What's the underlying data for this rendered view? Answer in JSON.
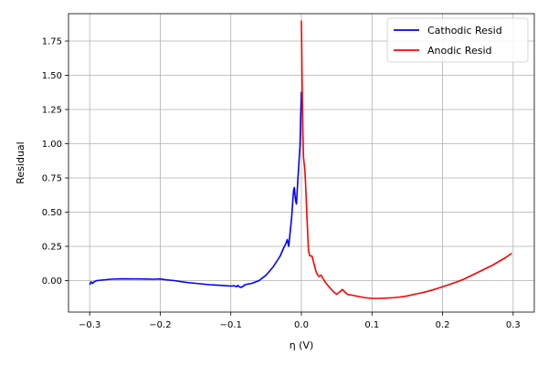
{
  "chart_data": {
    "type": "line",
    "title": "",
    "xlabel": "η (V)",
    "ylabel": "Residual",
    "xlim": [
      -0.33,
      0.33
    ],
    "ylim": [
      -0.23,
      1.95
    ],
    "x_ticks": [
      -0.3,
      -0.2,
      -0.1,
      0.0,
      0.1,
      0.2,
      0.3
    ],
    "x_tick_labels": [
      "−0.3",
      "−0.2",
      "−0.1",
      "0.0",
      "0.1",
      "0.2",
      "0.3"
    ],
    "y_ticks": [
      0.0,
      0.25,
      0.5,
      0.75,
      1.0,
      1.25,
      1.5,
      1.75
    ],
    "y_tick_labels": [
      "0.00",
      "0.25",
      "0.50",
      "0.75",
      "1.00",
      "1.25",
      "1.50",
      "1.75"
    ],
    "grid": true,
    "legend_position": "top-right",
    "series": [
      {
        "name": "Cathodic Resid",
        "color": "#0000ff",
        "x": [
          -0.3,
          -0.298,
          -0.296,
          -0.294,
          -0.29,
          -0.28,
          -0.27,
          -0.26,
          -0.25,
          -0.24,
          -0.23,
          -0.22,
          -0.21,
          -0.2,
          -0.195,
          -0.19,
          -0.18,
          -0.17,
          -0.16,
          -0.15,
          -0.14,
          -0.13,
          -0.12,
          -0.11,
          -0.1,
          -0.095,
          -0.092,
          -0.09,
          -0.088,
          -0.086,
          -0.084,
          -0.082,
          -0.08,
          -0.075,
          -0.07,
          -0.065,
          -0.06,
          -0.055,
          -0.05,
          -0.045,
          -0.04,
          -0.035,
          -0.03,
          -0.025,
          -0.022,
          -0.02,
          -0.018,
          -0.016,
          -0.014,
          -0.013,
          -0.012,
          -0.011,
          -0.01,
          -0.009,
          -0.008,
          -0.007,
          -0.006,
          -0.005,
          -0.004,
          -0.003,
          -0.002,
          -0.001,
          0.0
        ],
        "y": [
          -0.03,
          -0.01,
          -0.02,
          -0.01,
          0.0,
          0.005,
          0.01,
          0.012,
          0.013,
          0.012,
          0.012,
          0.011,
          0.01,
          0.012,
          0.008,
          0.005,
          0.0,
          -0.008,
          -0.015,
          -0.02,
          -0.025,
          -0.03,
          -0.033,
          -0.036,
          -0.04,
          -0.038,
          -0.045,
          -0.035,
          -0.045,
          -0.05,
          -0.045,
          -0.04,
          -0.03,
          -0.025,
          -0.02,
          -0.01,
          0.0,
          0.02,
          0.04,
          0.07,
          0.1,
          0.14,
          0.18,
          0.24,
          0.27,
          0.3,
          0.25,
          0.35,
          0.45,
          0.52,
          0.6,
          0.66,
          0.68,
          0.62,
          0.58,
          0.56,
          0.65,
          0.74,
          0.82,
          0.9,
          0.98,
          1.2,
          1.38
        ]
      },
      {
        "name": "Anodic Resid",
        "color": "#ff0000",
        "x": [
          0.0,
          0.001,
          0.002,
          0.003,
          0.005,
          0.006,
          0.008,
          0.01,
          0.012,
          0.015,
          0.018,
          0.02,
          0.022,
          0.025,
          0.028,
          0.03,
          0.035,
          0.04,
          0.045,
          0.05,
          0.055,
          0.058,
          0.06,
          0.065,
          0.07,
          0.08,
          0.09,
          0.1,
          0.11,
          0.12,
          0.13,
          0.14,
          0.15,
          0.16,
          0.17,
          0.18,
          0.19,
          0.2,
          0.21,
          0.22,
          0.23,
          0.24,
          0.25,
          0.26,
          0.27,
          0.28,
          0.29,
          0.298
        ],
        "y": [
          1.9,
          1.45,
          1.1,
          0.9,
          0.8,
          0.7,
          0.45,
          0.22,
          0.18,
          0.18,
          0.12,
          0.08,
          0.05,
          0.03,
          0.04,
          0.02,
          -0.02,
          -0.05,
          -0.08,
          -0.1,
          -0.08,
          -0.065,
          -0.075,
          -0.1,
          -0.105,
          -0.115,
          -0.125,
          -0.13,
          -0.13,
          -0.128,
          -0.125,
          -0.12,
          -0.112,
          -0.1,
          -0.09,
          -0.077,
          -0.062,
          -0.045,
          -0.028,
          -0.01,
          0.01,
          0.035,
          0.06,
          0.085,
          0.11,
          0.14,
          0.17,
          0.2
        ]
      }
    ]
  }
}
